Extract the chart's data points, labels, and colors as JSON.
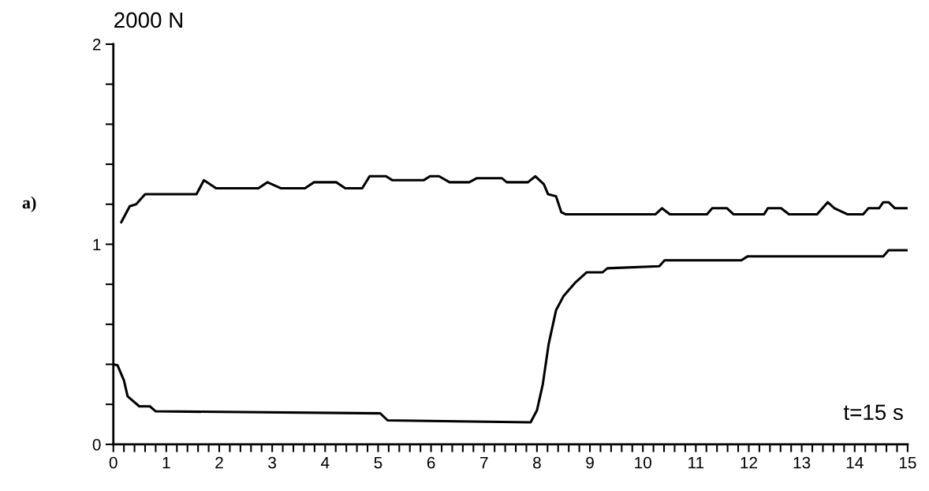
{
  "chart_data": {
    "type": "line",
    "ylabel": "2000 N",
    "annotations": [
      "a)",
      "t=15 s"
    ],
    "xlim": [
      0,
      15
    ],
    "ylim": [
      0,
      2
    ],
    "xticks": [
      0,
      {
        "value": 0.2,
        "label": null
      },
      {
        "value": 0.4,
        "label": null
      },
      {
        "value": 0.6,
        "label": null
      },
      {
        "value": 0.8,
        "label": null
      },
      1,
      {
        "value": 1.2,
        "label": null
      },
      {
        "value": 1.4,
        "label": null
      },
      {
        "value": 1.6,
        "label": null
      },
      {
        "value": 1.8,
        "label": null
      },
      2,
      {
        "value": 2.2,
        "label": null
      },
      {
        "value": 2.4,
        "label": null
      },
      {
        "value": 2.6,
        "label": null
      },
      {
        "value": 2.8,
        "label": null
      },
      3,
      {
        "value": 3.2,
        "label": null
      },
      {
        "value": 3.4,
        "label": null
      },
      {
        "value": 3.6,
        "label": null
      },
      {
        "value": 3.8,
        "label": null
      },
      4,
      {
        "value": 4.2,
        "label": null
      },
      {
        "value": 4.4,
        "label": null
      },
      {
        "value": 4.6,
        "label": null
      },
      {
        "value": 4.8,
        "label": null
      },
      5,
      {
        "value": 5.2,
        "label": null
      },
      {
        "value": 5.4,
        "label": null
      },
      {
        "value": 5.6,
        "label": null
      },
      {
        "value": 5.8,
        "label": null
      },
      6,
      {
        "value": 6.2,
        "label": null
      },
      {
        "value": 6.4,
        "label": null
      },
      {
        "value": 6.6,
        "label": null
      },
      {
        "value": 6.8,
        "label": null
      },
      7,
      {
        "value": 7.2,
        "label": null
      },
      {
        "value": 7.4,
        "label": null
      },
      {
        "value": 7.6,
        "label": null
      },
      {
        "value": 7.8,
        "label": null
      },
      8,
      {
        "value": 8.2,
        "label": null
      },
      {
        "value": 8.4,
        "label": null
      },
      {
        "value": 8.6,
        "label": null
      },
      {
        "value": 8.8,
        "label": null
      },
      9,
      {
        "value": 9.2,
        "label": null
      },
      {
        "value": 9.4,
        "label": null
      },
      {
        "value": 9.6,
        "label": null
      },
      {
        "value": 9.8,
        "label": null
      },
      10,
      {
        "value": 10.2,
        "label": null
      },
      {
        "value": 10.4,
        "label": null
      },
      {
        "value": 10.6,
        "label": null
      },
      {
        "value": 10.8,
        "label": null
      },
      11,
      {
        "value": 11.2,
        "label": null
      },
      {
        "value": 11.4,
        "label": null
      },
      {
        "value": 11.6,
        "label": null
      },
      {
        "value": 11.8,
        "label": null
      },
      12,
      {
        "value": 12.2,
        "label": null
      },
      {
        "value": 12.4,
        "label": null
      },
      {
        "value": 12.6,
        "label": null
      },
      {
        "value": 12.8,
        "label": null
      },
      13,
      {
        "value": 13.2,
        "label": null
      },
      {
        "value": 13.4,
        "label": null
      },
      {
        "value": 13.6,
        "label": null
      },
      {
        "value": 13.8,
        "label": null
      },
      14,
      {
        "value": 14.2,
        "label": null
      },
      {
        "value": 14.4,
        "label": null
      },
      {
        "value": 14.6,
        "label": null
      },
      {
        "value": 14.8,
        "label": null
      },
      15
    ],
    "yticks": [
      0,
      {
        "value": 0.2,
        "label": null
      },
      {
        "value": 0.4,
        "label": null
      },
      {
        "value": 0.6,
        "label": null
      },
      {
        "value": 0.8,
        "label": null
      },
      1,
      {
        "value": 1.2,
        "label": null
      },
      {
        "value": 1.4,
        "label": null
      },
      {
        "value": 1.6,
        "label": null
      },
      {
        "value": 1.8,
        "label": null
      },
      2
    ],
    "grid": false,
    "legend": false,
    "marker": "none",
    "line_style": "solid",
    "series": [
      {
        "color": "#000000",
        "x": [
          0.15,
          0.31,
          0.43,
          0.6,
          1.57,
          1.71,
          1.94,
          2.74,
          2.91,
          3.16,
          3.62,
          3.79,
          4.21,
          4.38,
          4.7,
          4.84,
          5.15,
          5.27,
          5.86,
          5.98,
          6.15,
          6.35,
          6.72,
          6.86,
          7.34,
          7.43,
          7.83,
          7.97,
          8.13,
          8.21,
          8.36,
          8.46,
          8.54,
          10.24,
          10.36,
          10.51,
          11.21,
          11.31,
          11.59,
          11.71,
          12.29,
          12.36,
          12.61,
          12.76,
          13.29,
          13.49,
          13.62,
          13.86,
          14.16,
          14.26,
          14.46,
          14.54,
          14.64,
          14.76,
          15.0
        ],
        "values": [
          1.11,
          1.19,
          1.2,
          1.25,
          1.25,
          1.32,
          1.28,
          1.28,
          1.31,
          1.28,
          1.28,
          1.31,
          1.31,
          1.28,
          1.28,
          1.34,
          1.34,
          1.32,
          1.32,
          1.34,
          1.34,
          1.31,
          1.31,
          1.33,
          1.33,
          1.31,
          1.31,
          1.34,
          1.3,
          1.25,
          1.24,
          1.16,
          1.15,
          1.15,
          1.18,
          1.15,
          1.15,
          1.18,
          1.18,
          1.15,
          1.15,
          1.18,
          1.18,
          1.15,
          1.15,
          1.21,
          1.18,
          1.15,
          1.15,
          1.18,
          1.18,
          1.21,
          1.21,
          1.18,
          1.18
        ]
      },
      {
        "color": "#000000",
        "x": [
          0.0,
          0.08,
          0.2,
          0.27,
          0.49,
          0.69,
          0.8,
          5.04,
          5.18,
          7.88,
          8.0,
          8.11,
          8.22,
          8.36,
          8.5,
          8.73,
          8.94,
          9.24,
          9.33,
          10.31,
          10.41,
          11.86,
          11.98,
          14.54,
          14.64,
          15.0
        ],
        "values": [
          0.4,
          0.395,
          0.32,
          0.24,
          0.19,
          0.19,
          0.165,
          0.155,
          0.12,
          0.11,
          0.17,
          0.3,
          0.5,
          0.67,
          0.74,
          0.81,
          0.86,
          0.86,
          0.88,
          0.89,
          0.92,
          0.92,
          0.94,
          0.94,
          0.97,
          0.97
        ]
      }
    ]
  }
}
